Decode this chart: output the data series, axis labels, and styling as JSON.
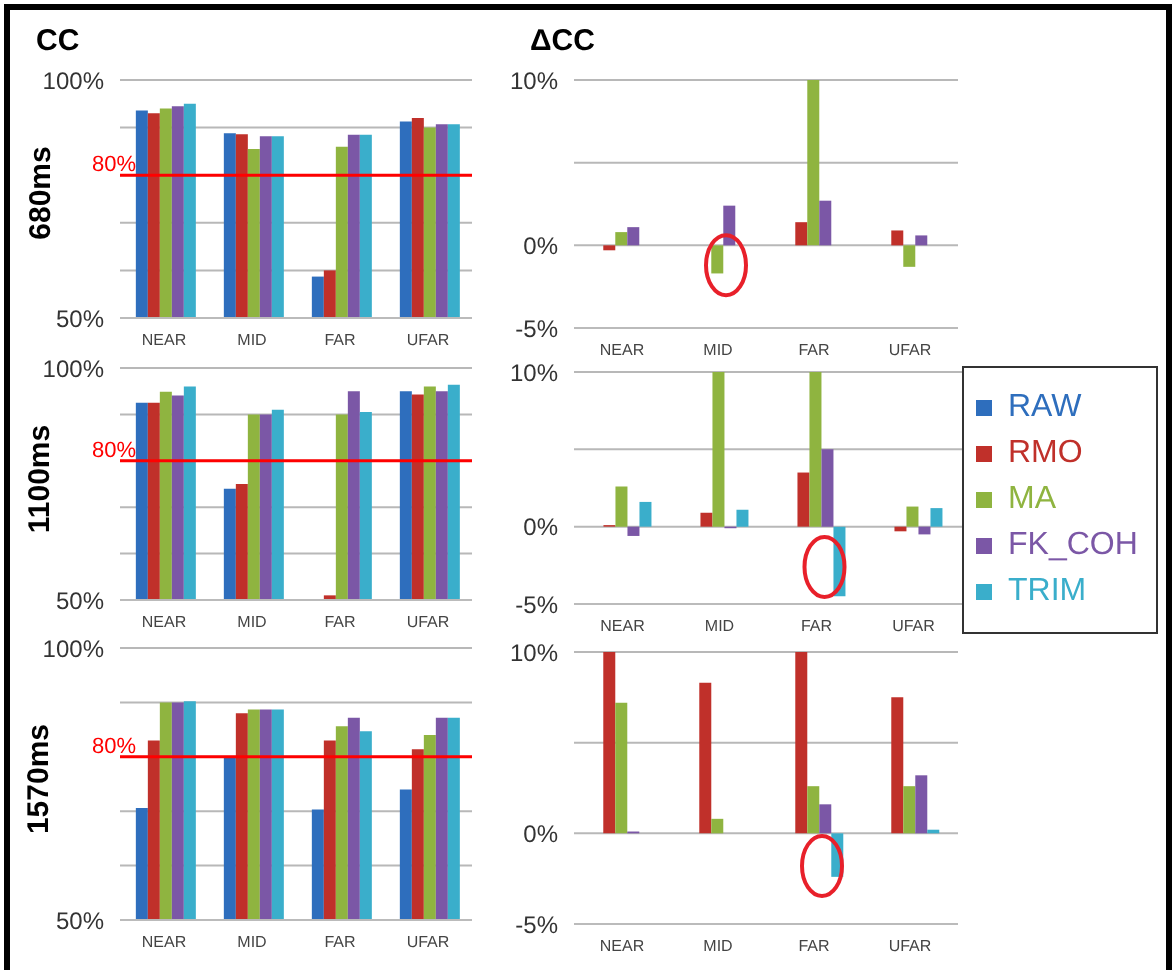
{
  "chart_data": [
    {
      "type": "bar",
      "title": "CC",
      "ylabel": "680ms",
      "categories": [
        "NEAR",
        "MID",
        "FAR",
        "UFAR"
      ],
      "series": [
        {
          "color": "#2e6ebd",
          "values": [
            93.6,
            88.8,
            58.7,
            91.3
          ]
        },
        {
          "color": "#c0302a",
          "values": [
            93,
            88.6,
            60,
            92
          ]
        },
        {
          "color": "#8fb440",
          "values": [
            94,
            85.5,
            86,
            90
          ]
        },
        {
          "color": "#7b57a6",
          "values": [
            94.5,
            88.2,
            88.5,
            90.7
          ]
        },
        {
          "color": "#3aaecb",
          "values": [
            95,
            88.2,
            88.5,
            90.7
          ]
        }
      ],
      "ylim": [
        50,
        100
      ],
      "yticks": [
        {
          "value": 50,
          "label": "50%"
        },
        {
          "value": 60,
          "label": null
        },
        {
          "value": 70,
          "label": null
        },
        {
          "value": 80,
          "label": null
        },
        {
          "value": 90,
          "label": null
        },
        {
          "value": 100,
          "label": "100%"
        }
      ],
      "grid": "y",
      "ref_lines": [
        {
          "axis": "y",
          "value": 80,
          "label": "80%",
          "color": "#ff0000"
        }
      ]
    },
    {
      "type": "bar",
      "title": "ΔCC",
      "categories": [
        "NEAR",
        "MID",
        "FAR",
        "UFAR"
      ],
      "series": [
        {
          "color": "#2e6ebd",
          "values": [
            null,
            null,
            null,
            null
          ]
        },
        {
          "color": "#c0302a",
          "values": [
            -0.3,
            null,
            1.4,
            0.9
          ]
        },
        {
          "color": "#8fb440",
          "values": [
            0.8,
            -1.7,
            10,
            -1.3
          ]
        },
        {
          "color": "#7b57a6",
          "values": [
            1.1,
            2.4,
            2.7,
            0.6
          ]
        },
        {
          "color": "#3aaecb",
          "values": [
            null,
            null,
            null,
            null
          ]
        }
      ],
      "ylim": [
        -5,
        10
      ],
      "yticks": [
        {
          "value": -5,
          "label": "-5%"
        },
        {
          "value": 0,
          "label": "0%"
        },
        {
          "value": 5,
          "label": null
        },
        {
          "value": 10,
          "label": "10%"
        }
      ],
      "grid": "y"
    },
    {
      "type": "bar",
      "ylabel": "1100ms",
      "categories": [
        "NEAR",
        "MID",
        "FAR",
        "UFAR"
      ],
      "series": [
        {
          "color": "#2e6ebd",
          "values": [
            92.5,
            74,
            null,
            95
          ]
        },
        {
          "color": "#c0302a",
          "values": [
            92.5,
            75,
            51,
            94.3
          ]
        },
        {
          "color": "#8fb440",
          "values": [
            94.9,
            90,
            90,
            96
          ]
        },
        {
          "color": "#7b57a6",
          "values": [
            94.1,
            90,
            95,
            95
          ]
        },
        {
          "color": "#3aaecb",
          "values": [
            96,
            91,
            90.5,
            96.4
          ]
        }
      ],
      "ylim": [
        50,
        100
      ],
      "yticks": [
        {
          "value": 50,
          "label": "50%"
        },
        {
          "value": 60,
          "label": null
        },
        {
          "value": 70,
          "label": null
        },
        {
          "value": 80,
          "label": null
        },
        {
          "value": 90,
          "label": null
        },
        {
          "value": 100,
          "label": "100%"
        }
      ],
      "grid": "y",
      "ref_lines": [
        {
          "axis": "y",
          "value": 80,
          "label": "80%",
          "color": "#ff0000"
        }
      ]
    },
    {
      "type": "bar",
      "categories": [
        "NEAR",
        "MID",
        "FAR",
        "UFAR"
      ],
      "series": [
        {
          "name": "RAW",
          "color": "#2e6ebd",
          "values": [
            null,
            null,
            null,
            null
          ]
        },
        {
          "name": "RMO",
          "color": "#c0302a",
          "values": [
            0.1,
            0.9,
            3.5,
            -0.3
          ]
        },
        {
          "name": "MA",
          "color": "#8fb440",
          "values": [
            2.6,
            10,
            10,
            1.3
          ]
        },
        {
          "name": "FK_COH",
          "color": "#7b57a6",
          "values": [
            -0.6,
            -0.1,
            5,
            -0.5
          ]
        },
        {
          "name": "TRIM",
          "color": "#3aaecb",
          "values": [
            1.6,
            1.1,
            -4.5,
            1.2
          ]
        }
      ],
      "ylim": [
        -5,
        10
      ],
      "yticks": [
        {
          "value": -5,
          "label": "-5%"
        },
        {
          "value": 0,
          "label": "0%"
        },
        {
          "value": 5,
          "label": null
        },
        {
          "value": 10,
          "label": "10%"
        }
      ],
      "grid": "y",
      "legend": "right"
    },
    {
      "type": "bar",
      "ylabel": "1570ms",
      "categories": [
        "NEAR",
        "MID",
        "FAR",
        "UFAR"
      ],
      "series": [
        {
          "color": "#2e6ebd",
          "values": [
            70.6,
            80,
            70.3,
            74
          ]
        },
        {
          "color": "#c0302a",
          "values": [
            83,
            88,
            83,
            81.4
          ]
        },
        {
          "color": "#8fb440",
          "values": [
            90,
            88.7,
            85.6,
            84
          ]
        },
        {
          "color": "#7b57a6",
          "values": [
            90,
            88.7,
            87.2,
            87.2
          ]
        },
        {
          "color": "#3aaecb",
          "values": [
            90.2,
            88.7,
            84.7,
            87.2
          ]
        }
      ],
      "ylim": [
        50,
        100
      ],
      "yticks": [
        {
          "value": 50,
          "label": "50%"
        },
        {
          "value": 60,
          "label": null
        },
        {
          "value": 70,
          "label": null
        },
        {
          "value": 80,
          "label": null
        },
        {
          "value": 90,
          "label": null
        },
        {
          "value": 100,
          "label": "100%"
        }
      ],
      "grid": "y",
      "ref_lines": [
        {
          "axis": "y",
          "value": 80,
          "label": "80%",
          "color": "#ff0000"
        }
      ]
    },
    {
      "type": "bar",
      "categories": [
        "NEAR",
        "MID",
        "FAR",
        "UFAR"
      ],
      "series": [
        {
          "color": "#2e6ebd",
          "values": [
            null,
            null,
            null,
            null
          ]
        },
        {
          "color": "#c0302a",
          "values": [
            10,
            8.3,
            10,
            7.5
          ]
        },
        {
          "color": "#8fb440",
          "values": [
            7.2,
            0.8,
            2.6,
            2.6
          ]
        },
        {
          "color": "#7b57a6",
          "values": [
            0.1,
            null,
            1.6,
            3.2
          ]
        },
        {
          "color": "#3aaecb",
          "values": [
            null,
            null,
            -2.4,
            0.2
          ]
        }
      ],
      "ylim": [
        -5,
        10
      ],
      "yticks": [
        {
          "value": -5,
          "label": "-5%"
        },
        {
          "value": 0,
          "label": "0%"
        },
        {
          "value": 5,
          "label": null
        },
        {
          "value": 10,
          "label": "10%"
        }
      ],
      "grid": "y"
    }
  ]
}
